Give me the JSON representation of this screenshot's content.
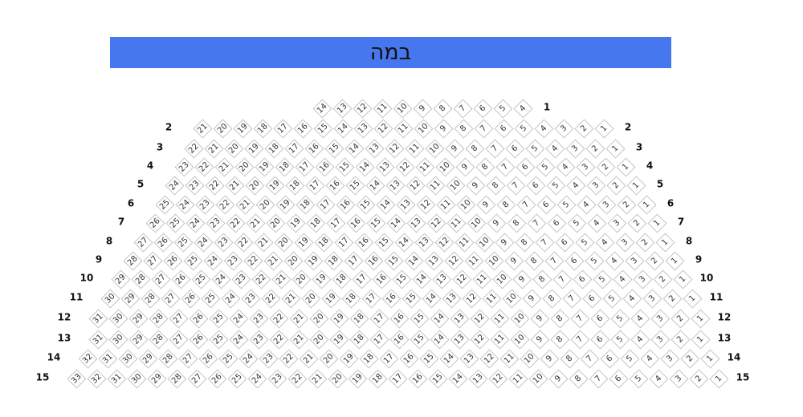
{
  "stage": {
    "label": "במה",
    "color": "#4677ee"
  },
  "rows": [
    {
      "label": "1",
      "from": 14,
      "to": 4,
      "left_label": false
    },
    {
      "label": "2",
      "from": 21,
      "to": 1,
      "left_label": true
    },
    {
      "label": "3",
      "from": 22,
      "to": 1,
      "left_label": true
    },
    {
      "label": "4",
      "from": 23,
      "to": 1,
      "left_label": true
    },
    {
      "label": "5",
      "from": 24,
      "to": 1,
      "left_label": true
    },
    {
      "label": "6",
      "from": 25,
      "to": 1,
      "left_label": true
    },
    {
      "label": "7",
      "from": 26,
      "to": 1,
      "left_label": true
    },
    {
      "label": "8",
      "from": 27,
      "to": 1,
      "left_label": true
    },
    {
      "label": "9",
      "from": 28,
      "to": 1,
      "left_label": true
    },
    {
      "label": "10",
      "from": 29,
      "to": 1,
      "left_label": true
    },
    {
      "label": "11",
      "from": 30,
      "to": 1,
      "left_label": true
    },
    {
      "label": "12",
      "from": 31,
      "to": 1,
      "left_label": true
    },
    {
      "label": "13",
      "from": 31,
      "to": 1,
      "left_label": true
    },
    {
      "label": "14",
      "from": 32,
      "to": 1,
      "left_label": true
    },
    {
      "label": "15",
      "from": 33,
      "to": 1,
      "left_label": true
    }
  ]
}
